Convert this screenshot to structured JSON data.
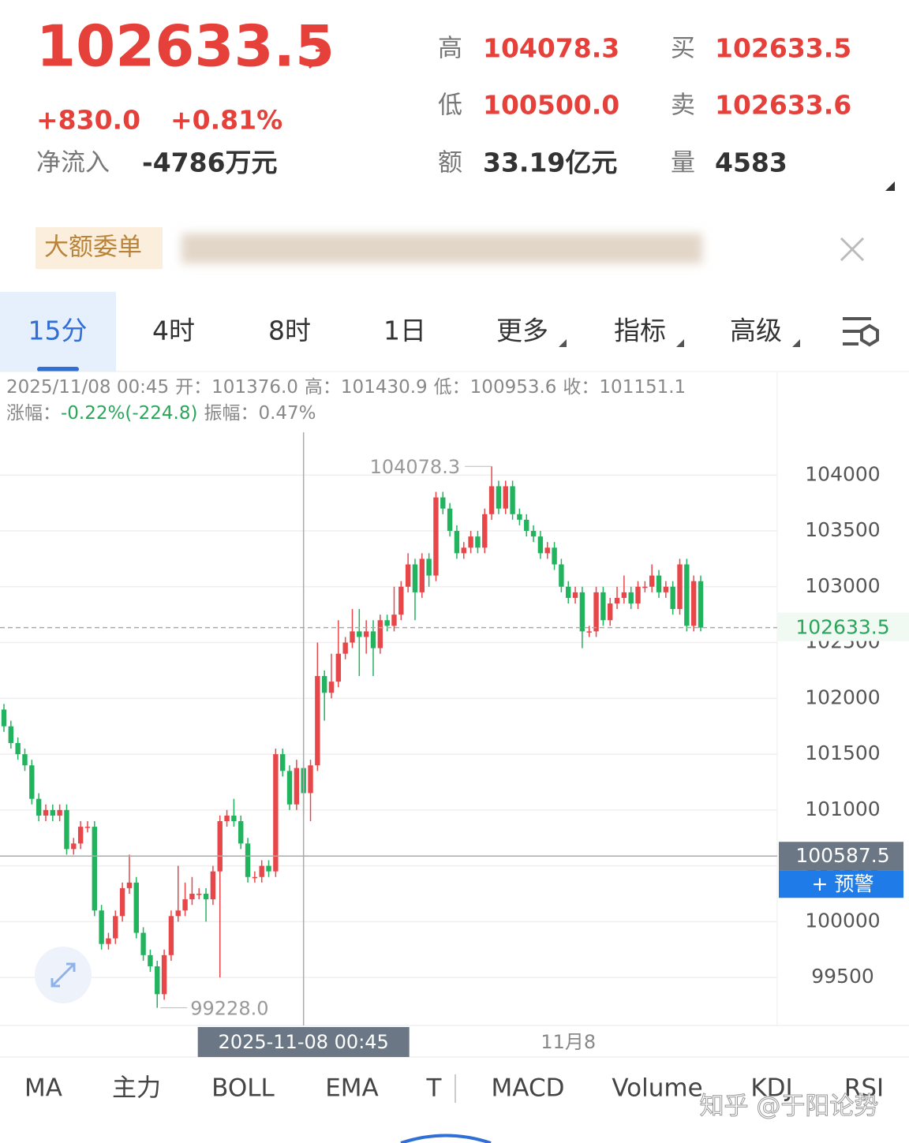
{
  "header": {
    "price": "102633.5",
    "change": "+830.0",
    "change_pct": "+0.81%",
    "net_inflow_label": "净流入",
    "net_inflow": "-4786万元",
    "stats": [
      {
        "label": "高",
        "value": "104078.3"
      },
      {
        "label": "低",
        "value": "100500.0"
      },
      {
        "label": "额",
        "value": "33.19亿元"
      },
      {
        "label": "买",
        "value": "102633.5"
      },
      {
        "label": "卖",
        "value": "102633.6"
      },
      {
        "label": "量",
        "value": "4583"
      }
    ]
  },
  "banner": {
    "tag": "大额委单"
  },
  "tabs": [
    "15分",
    "4时",
    "8时",
    "1日",
    "更多",
    "指标",
    "高级"
  ],
  "info": {
    "line1": [
      "2025/11/08 00:45",
      "开：",
      "101376.0",
      "高：",
      "101430.9",
      "低：",
      "100953.6",
      "收：",
      "101151.1"
    ],
    "line2": [
      "涨幅：",
      "-0.22%(-224.8)",
      "振幅：",
      "0.47%"
    ]
  },
  "chart_data": {
    "type": "candlestick",
    "open": [
      101900,
      101750,
      101600,
      101500,
      101400,
      101100,
      100950,
      101000,
      100950,
      101000,
      100650,
      100700,
      100850,
      100850,
      100100,
      99800,
      99850,
      100050,
      100300,
      100350,
      99900,
      99700,
      99600,
      99350,
      99700,
      100050,
      100100,
      100200,
      100250,
      100250,
      100200,
      100450,
      100900,
      100950,
      100900,
      100700,
      100400,
      100400,
      100500,
      100450,
      101500,
      101350,
      101050,
      101376,
      101151.1,
      101400,
      102200,
      102050,
      102150,
      102400,
      102500,
      102600,
      102550,
      102600,
      102450,
      102700,
      102650,
      102750,
      103000,
      103200,
      102950,
      103250,
      103100,
      103800,
      103700,
      103500,
      103300,
      103350,
      103450,
      103350,
      103650,
      103900,
      103700,
      103900,
      103650,
      103600,
      103500,
      103450,
      103300,
      103350,
      103200,
      103000,
      102900,
      102950,
      102600,
      102600,
      102950,
      102700,
      102850,
      102900,
      102950,
      102850,
      103000,
      103000,
      103100,
      102950,
      103000,
      102800,
      103200,
      102650,
      103050
    ],
    "high": [
      101950,
      101800,
      101650,
      101550,
      101450,
      101150,
      101050,
      101050,
      101050,
      101050,
      100750,
      100900,
      100900,
      100900,
      100150,
      99900,
      100100,
      100350,
      100600,
      100400,
      99950,
      99750,
      99650,
      99750,
      100100,
      100500,
      100350,
      100400,
      100300,
      100300,
      100500,
      100950,
      101000,
      101100,
      100950,
      100750,
      100450,
      100550,
      100550,
      101550,
      101550,
      101400,
      101450,
      101430.9,
      101450,
      102500,
      102250,
      102400,
      102700,
      102550,
      102800,
      102800,
      102700,
      102700,
      102750,
      102750,
      103000,
      103050,
      103300,
      103250,
      103300,
      103300,
      103850,
      103850,
      103750,
      103550,
      103400,
      103500,
      103500,
      103700,
      104078.3,
      103950,
      103950,
      103950,
      103700,
      103650,
      103550,
      103500,
      103400,
      103400,
      103250,
      103050,
      103000,
      103000,
      102650,
      103000,
      103000,
      102900,
      103000,
      103100,
      103000,
      103050,
      103050,
      103200,
      103150,
      103050,
      103050,
      103250,
      103250,
      103100,
      103100
    ],
    "low": [
      101700,
      101550,
      101450,
      101350,
      101050,
      100900,
      100900,
      100900,
      100900,
      100600,
      100600,
      100650,
      100800,
      100050,
      99750,
      99750,
      99800,
      100000,
      100250,
      99850,
      99650,
      99550,
      99228,
      99300,
      99650,
      100000,
      100050,
      100150,
      100200,
      100000,
      100150,
      99500,
      100850,
      100850,
      100650,
      100350,
      100350,
      100350,
      100400,
      100400,
      101300,
      101000,
      101000,
      100953.6,
      100900,
      101350,
      101800,
      102000,
      102100,
      102350,
      102450,
      102200,
      102400,
      102200,
      102400,
      102600,
      102600,
      102700,
      102950,
      102700,
      102900,
      103000,
      103050,
      103650,
      103450,
      103250,
      103250,
      103300,
      103300,
      103300,
      103600,
      103650,
      103650,
      103600,
      103550,
      103450,
      103400,
      103250,
      103250,
      103150,
      102950,
      102850,
      102850,
      102450,
      102550,
      102550,
      102650,
      102650,
      102800,
      102850,
      102800,
      102800,
      102950,
      102950,
      102900,
      102900,
      102750,
      102750,
      102600,
      102600,
      102600
    ],
    "close": [
      101750,
      101600,
      101500,
      101400,
      101100,
      100950,
      101000,
      100950,
      101000,
      100650,
      100700,
      100850,
      100850,
      100100,
      99800,
      99850,
      100050,
      100300,
      100350,
      99900,
      99700,
      99600,
      99350,
      99700,
      100050,
      100100,
      100200,
      100250,
      100250,
      100200,
      100450,
      100900,
      100950,
      100900,
      100700,
      100400,
      100400,
      100500,
      100450,
      101500,
      101350,
      101050,
      101376,
      101151.1,
      101400,
      102200,
      102050,
      102150,
      102400,
      102500,
      102600,
      102550,
      102600,
      102450,
      102700,
      102650,
      102750,
      103000,
      103200,
      102950,
      103250,
      103100,
      103800,
      103700,
      103500,
      103300,
      103350,
      103450,
      103350,
      103650,
      103900,
      103700,
      103900,
      103650,
      103600,
      103500,
      103450,
      103300,
      103350,
      103200,
      103000,
      102900,
      102950,
      102600,
      102600,
      102950,
      102700,
      102850,
      102900,
      102950,
      102850,
      103000,
      103000,
      103100,
      102950,
      103000,
      102800,
      103200,
      102650,
      103050,
      102633.5
    ],
    "up_color": "#e8474a",
    "down_color": "#22b35e",
    "ylim": [
      99070,
      104440
    ],
    "yticks": [
      99500,
      100000,
      100500,
      101000,
      101500,
      102000,
      102500,
      103000,
      103500,
      104000
    ],
    "grid": true,
    "last_price": 102633.5,
    "crosshair": {
      "index": 43,
      "price": 100587.5,
      "label": "2025-11-08 00:45"
    },
    "x_labels": [
      {
        "index": 81,
        "label": "11月8"
      }
    ],
    "high_label": {
      "index": 70,
      "value": 104078.3
    },
    "low_label": {
      "index": 22,
      "value": 99228,
      "label": "99228.0"
    },
    "alert_button": "+ 预警"
  },
  "indicators": [
    "MA",
    "主力",
    "BOLL",
    "EMA",
    "T",
    "MACD",
    "Volume",
    "KDJ",
    "RSI"
  ],
  "watermark": "知乎 @于阳论势"
}
